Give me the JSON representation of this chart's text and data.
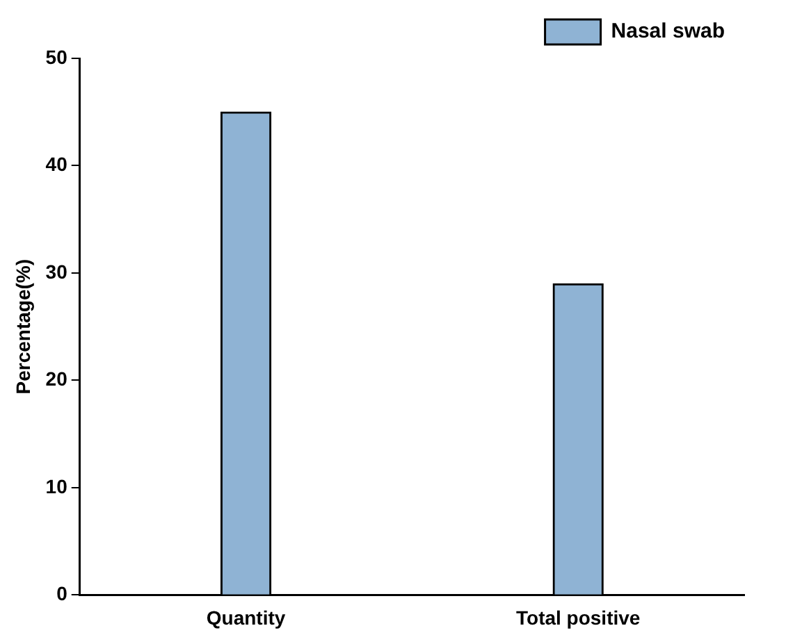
{
  "chart_data": {
    "type": "bar",
    "ylabel": "Percentage(%)",
    "categories": [
      "Quantity",
      "Total positive"
    ],
    "series": [
      {
        "name": "Nasal swab",
        "color": "#8fb3d4",
        "values": [
          45,
          29
        ]
      }
    ],
    "ylim": [
      0,
      50
    ],
    "yticks": [
      0,
      10,
      20,
      30,
      40,
      50
    ],
    "grid": false,
    "legend": "top right"
  }
}
